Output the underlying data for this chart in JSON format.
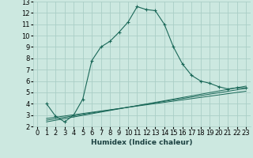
{
  "xlabel": "Humidex (Indice chaleur)",
  "background_color": "#cce8e0",
  "grid_color": "#aacec6",
  "line_color": "#1a6858",
  "xlim": [
    -0.5,
    23.5
  ],
  "ylim": [
    2,
    13
  ],
  "xticks": [
    0,
    1,
    2,
    3,
    4,
    5,
    6,
    7,
    8,
    9,
    10,
    11,
    12,
    13,
    14,
    15,
    16,
    17,
    18,
    19,
    20,
    21,
    22,
    23
  ],
  "yticks": [
    2,
    3,
    4,
    5,
    6,
    7,
    8,
    9,
    10,
    11,
    12,
    13
  ],
  "series1_x": [
    1,
    2,
    3,
    4,
    5,
    6,
    7,
    8,
    9,
    10,
    11,
    12,
    13,
    14,
    15,
    16,
    17,
    18,
    19,
    20,
    21,
    22,
    23
  ],
  "series1_y": [
    4.0,
    2.9,
    2.4,
    3.0,
    4.4,
    7.8,
    9.0,
    9.5,
    10.3,
    11.2,
    12.55,
    12.3,
    12.2,
    11.0,
    9.0,
    7.5,
    6.5,
    6.0,
    5.8,
    5.5,
    5.3,
    5.4,
    5.4
  ],
  "series2_x": [
    1,
    23
  ],
  "series2_y": [
    2.4,
    5.55
  ],
  "series3_x": [
    1,
    23
  ],
  "series3_y": [
    2.55,
    5.35
  ],
  "series4_x": [
    1,
    23
  ],
  "series4_y": [
    2.7,
    5.1
  ],
  "xlabel_fontsize": 6.5,
  "tick_fontsize": 6.0
}
